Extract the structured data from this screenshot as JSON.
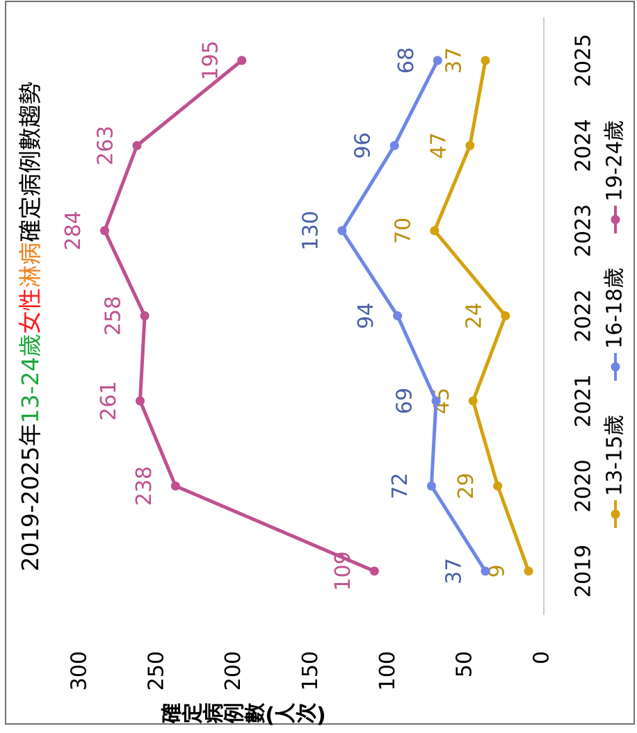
{
  "chart_data": {
    "type": "line",
    "title": [
      {
        "text": "2019-2025年",
        "color": "#000000"
      },
      {
        "text": "13-24歲",
        "color": "#1aa83a"
      },
      {
        "text": "女性",
        "color": "#ff1a1a"
      },
      {
        "text": "淋病",
        "color": "#f0821e"
      },
      {
        "text": "確定病例數趨勢",
        "color": "#000000"
      }
    ],
    "y_label": "確定病例數(人次)",
    "categories": [
      "2019",
      "2020",
      "2021",
      "2022",
      "2023",
      "2024",
      "2025"
    ],
    "series": [
      {
        "name": "13-15歲",
        "color": "#d4a20f",
        "label_color": "#b8900c",
        "values": [
          9,
          29,
          45,
          24,
          70,
          47,
          37
        ]
      },
      {
        "name": "16-18歲",
        "color": "#6f86e8",
        "label_color": "#4a5fa8",
        "values": [
          37,
          72,
          69,
          94,
          130,
          96,
          68
        ]
      },
      {
        "name": "19-24歲",
        "color": "#c0508f",
        "label_color": "#c0508f",
        "values": [
          109,
          238,
          261,
          258,
          284,
          263,
          195
        ]
      }
    ],
    "ylim": [
      0,
      300
    ],
    "yticks": [
      0,
      50,
      100,
      150,
      200,
      250,
      300
    ],
    "legend": "bottom"
  }
}
